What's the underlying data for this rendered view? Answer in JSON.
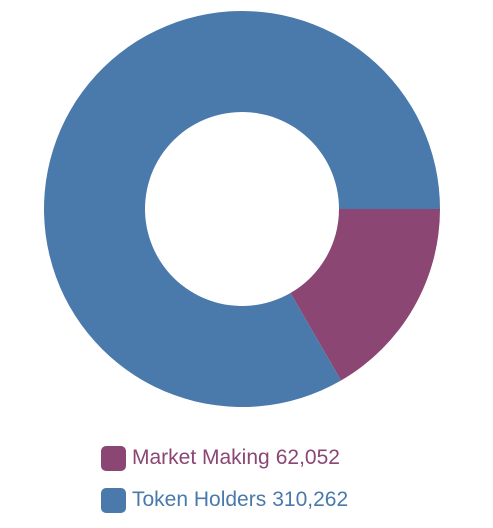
{
  "chart_data": {
    "type": "pie",
    "variant": "donut",
    "categories": [
      "Market Making",
      "Token Holders"
    ],
    "values": [
      62052,
      310262
    ],
    "value_labels": [
      "62,052",
      "310,262"
    ],
    "colors": [
      "#8b4673",
      "#4a79ab"
    ],
    "legend_position": "bottom"
  }
}
